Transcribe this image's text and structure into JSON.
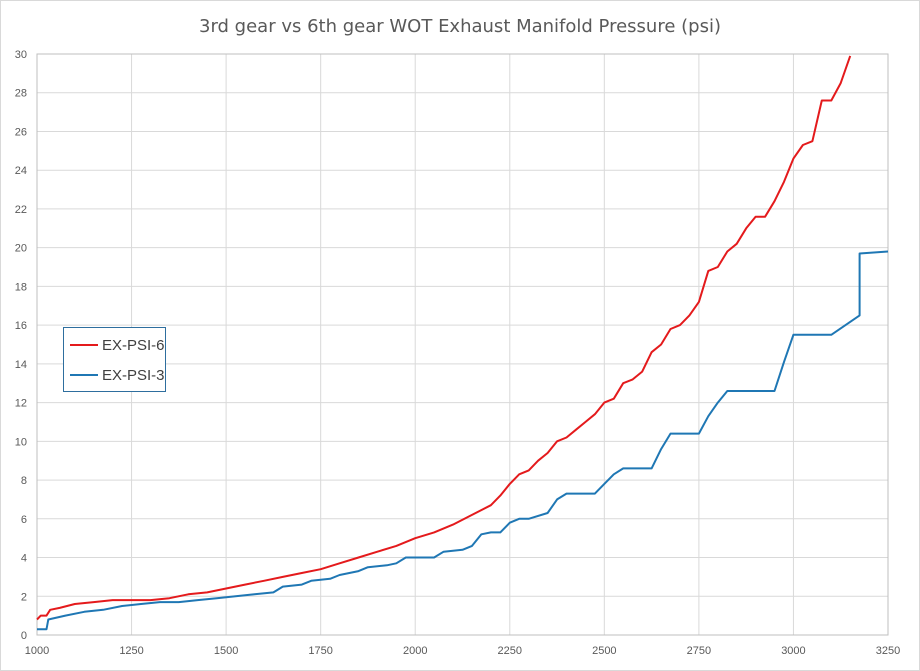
{
  "chart_data": {
    "type": "line",
    "title": "3rd gear vs 6th gear WOT Exhaust Manifold Pressure (psi)",
    "xlabel": "",
    "ylabel": "",
    "xlim": [
      1000,
      3250
    ],
    "ylim": [
      0,
      30
    ],
    "x_ticks": [
      1000,
      1250,
      1500,
      1750,
      2000,
      2250,
      2500,
      2750,
      3000,
      3250
    ],
    "y_ticks": [
      0,
      2,
      4,
      6,
      8,
      10,
      12,
      14,
      16,
      18,
      20,
      22,
      24,
      26,
      28,
      30
    ],
    "grid": true,
    "legend_position": "left-middle",
    "series": [
      {
        "name": "EX-PSI-6",
        "color": "#e41a1c",
        "points": [
          [
            1000,
            0.8
          ],
          [
            1010,
            1.0
          ],
          [
            1025,
            1.0
          ],
          [
            1035,
            1.3
          ],
          [
            1060,
            1.4
          ],
          [
            1100,
            1.6
          ],
          [
            1150,
            1.7
          ],
          [
            1200,
            1.8
          ],
          [
            1250,
            1.8
          ],
          [
            1300,
            1.8
          ],
          [
            1350,
            1.9
          ],
          [
            1400,
            2.1
          ],
          [
            1450,
            2.2
          ],
          [
            1500,
            2.4
          ],
          [
            1550,
            2.6
          ],
          [
            1600,
            2.8
          ],
          [
            1650,
            3.0
          ],
          [
            1700,
            3.2
          ],
          [
            1750,
            3.4
          ],
          [
            1800,
            3.7
          ],
          [
            1850,
            4.0
          ],
          [
            1900,
            4.3
          ],
          [
            1950,
            4.6
          ],
          [
            2000,
            5.0
          ],
          [
            2050,
            5.3
          ],
          [
            2100,
            5.7
          ],
          [
            2150,
            6.2
          ],
          [
            2200,
            6.7
          ],
          [
            2225,
            7.2
          ],
          [
            2250,
            7.8
          ],
          [
            2275,
            8.3
          ],
          [
            2300,
            8.5
          ],
          [
            2325,
            9.0
          ],
          [
            2350,
            9.4
          ],
          [
            2375,
            10.0
          ],
          [
            2400,
            10.2
          ],
          [
            2425,
            10.6
          ],
          [
            2450,
            11.0
          ],
          [
            2475,
            11.4
          ],
          [
            2500,
            12.0
          ],
          [
            2525,
            12.2
          ],
          [
            2550,
            13.0
          ],
          [
            2575,
            13.2
          ],
          [
            2600,
            13.6
          ],
          [
            2625,
            14.6
          ],
          [
            2650,
            15.0
          ],
          [
            2675,
            15.8
          ],
          [
            2700,
            16.0
          ],
          [
            2725,
            16.5
          ],
          [
            2750,
            17.2
          ],
          [
            2775,
            18.8
          ],
          [
            2800,
            19.0
          ],
          [
            2825,
            19.8
          ],
          [
            2850,
            20.2
          ],
          [
            2875,
            21.0
          ],
          [
            2900,
            21.6
          ],
          [
            2925,
            21.6
          ],
          [
            2950,
            22.4
          ],
          [
            2975,
            23.4
          ],
          [
            3000,
            24.6
          ],
          [
            3025,
            25.3
          ],
          [
            3050,
            25.5
          ],
          [
            3075,
            27.6
          ],
          [
            3100,
            27.6
          ],
          [
            3125,
            28.5
          ],
          [
            3150,
            29.9
          ]
        ]
      },
      {
        "name": "EX-PSI-3",
        "color": "#1f77b4",
        "points": [
          [
            1000,
            0.3
          ],
          [
            1025,
            0.3
          ],
          [
            1030,
            0.8
          ],
          [
            1075,
            1.0
          ],
          [
            1125,
            1.2
          ],
          [
            1175,
            1.3
          ],
          [
            1225,
            1.5
          ],
          [
            1275,
            1.6
          ],
          [
            1325,
            1.7
          ],
          [
            1375,
            1.7
          ],
          [
            1425,
            1.8
          ],
          [
            1475,
            1.9
          ],
          [
            1525,
            2.0
          ],
          [
            1575,
            2.1
          ],
          [
            1625,
            2.2
          ],
          [
            1650,
            2.5
          ],
          [
            1700,
            2.6
          ],
          [
            1725,
            2.8
          ],
          [
            1775,
            2.9
          ],
          [
            1800,
            3.1
          ],
          [
            1850,
            3.3
          ],
          [
            1875,
            3.5
          ],
          [
            1925,
            3.6
          ],
          [
            1950,
            3.7
          ],
          [
            1975,
            4.0
          ],
          [
            2025,
            4.0
          ],
          [
            2050,
            4.0
          ],
          [
            2075,
            4.3
          ],
          [
            2125,
            4.4
          ],
          [
            2150,
            4.6
          ],
          [
            2175,
            5.2
          ],
          [
            2200,
            5.3
          ],
          [
            2225,
            5.3
          ],
          [
            2250,
            5.8
          ],
          [
            2275,
            6.0
          ],
          [
            2300,
            6.0
          ],
          [
            2350,
            6.3
          ],
          [
            2375,
            7.0
          ],
          [
            2400,
            7.3
          ],
          [
            2425,
            7.3
          ],
          [
            2475,
            7.3
          ],
          [
            2500,
            7.8
          ],
          [
            2525,
            8.3
          ],
          [
            2550,
            8.6
          ],
          [
            2600,
            8.6
          ],
          [
            2625,
            8.6
          ],
          [
            2650,
            9.6
          ],
          [
            2675,
            10.4
          ],
          [
            2725,
            10.4
          ],
          [
            2750,
            10.4
          ],
          [
            2775,
            11.3
          ],
          [
            2800,
            12.0
          ],
          [
            2825,
            12.6
          ],
          [
            2875,
            12.6
          ],
          [
            2950,
            12.6
          ],
          [
            2975,
            14.1
          ],
          [
            3000,
            15.5
          ],
          [
            3050,
            15.5
          ],
          [
            3100,
            15.5
          ],
          [
            3175,
            16.5
          ],
          [
            3175,
            19.7
          ],
          [
            3250,
            19.8
          ]
        ]
      }
    ]
  }
}
